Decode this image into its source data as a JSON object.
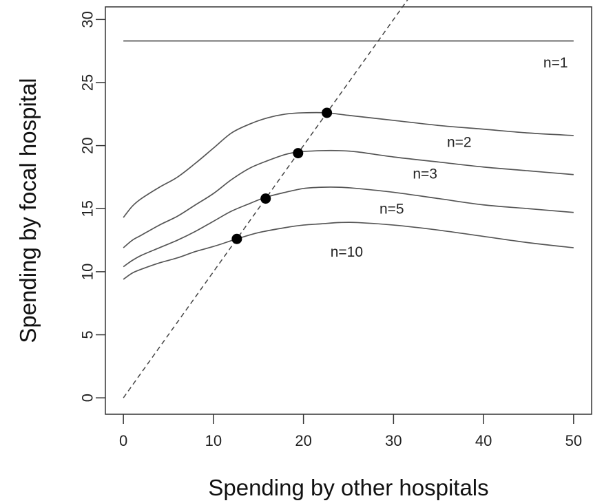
{
  "chart_data": {
    "type": "line",
    "title": "",
    "xlabel": "Spending by other hospitals",
    "ylabel": "Spending by focal hospital",
    "xlim": [
      -2,
      52
    ],
    "ylim": [
      -1.3,
      31
    ],
    "xticks": [
      0,
      10,
      20,
      30,
      40,
      50
    ],
    "yticks": [
      0,
      5,
      10,
      15,
      20,
      25,
      30
    ],
    "grid": false,
    "legend": "none",
    "series": [
      {
        "name": "n=1",
        "label_at": [
          48,
          26.6
        ],
        "x": [
          0,
          50
        ],
        "y": [
          28.3,
          28.3
        ]
      },
      {
        "name": "n=2",
        "label_at": [
          37.3,
          20.3
        ],
        "x": [
          0,
          1,
          2,
          4,
          6,
          8,
          10,
          12,
          14,
          16,
          18,
          20,
          22.5,
          25,
          30,
          35,
          40,
          45,
          50
        ],
        "y": [
          14.3,
          15.2,
          15.8,
          16.7,
          17.5,
          18.6,
          19.8,
          21.0,
          21.7,
          22.2,
          22.5,
          22.6,
          22.6,
          22.4,
          22.0,
          21.6,
          21.3,
          21.0,
          20.8
        ]
      },
      {
        "name": "n=3",
        "label_at": [
          33.5,
          17.8
        ],
        "x": [
          0,
          1,
          2,
          4,
          6,
          8,
          10,
          12,
          14,
          16,
          18,
          19.5,
          22,
          24,
          26,
          30,
          35,
          40,
          45,
          50
        ],
        "y": [
          11.9,
          12.5,
          12.9,
          13.7,
          14.4,
          15.3,
          16.2,
          17.3,
          18.2,
          18.8,
          19.3,
          19.5,
          19.6,
          19.6,
          19.5,
          19.1,
          18.7,
          18.3,
          18.0,
          17.7
        ]
      },
      {
        "name": "n=5",
        "label_at": [
          29.8,
          15.0
        ],
        "x": [
          0,
          1,
          2,
          4,
          6,
          8,
          10,
          12,
          14,
          15.8,
          18,
          20,
          22,
          24,
          26,
          30,
          35,
          40,
          45,
          50
        ],
        "y": [
          10.4,
          10.9,
          11.3,
          11.9,
          12.5,
          13.2,
          14.0,
          14.8,
          15.4,
          15.9,
          16.3,
          16.6,
          16.7,
          16.7,
          16.6,
          16.3,
          15.8,
          15.3,
          15.0,
          14.7
        ]
      },
      {
        "name": "n=10",
        "label_at": [
          24.8,
          11.6
        ],
        "x": [
          0,
          1,
          2,
          4,
          6,
          8,
          10,
          12.6,
          15,
          18,
          20,
          22,
          24,
          26,
          30,
          35,
          40,
          45,
          50
        ],
        "y": [
          9.4,
          9.9,
          10.2,
          10.7,
          11.1,
          11.6,
          12.0,
          12.6,
          13.1,
          13.5,
          13.7,
          13.8,
          13.9,
          13.9,
          13.7,
          13.3,
          12.8,
          12.3,
          11.9
        ]
      }
    ],
    "reference_line": {
      "style": "dashed",
      "x": [
        0,
        31.6
      ],
      "y": [
        0,
        31.6
      ]
    },
    "points": [
      {
        "x": 22.6,
        "y": 22.6
      },
      {
        "x": 19.4,
        "y": 19.4
      },
      {
        "x": 15.8,
        "y": 15.8
      },
      {
        "x": 12.6,
        "y": 12.6
      }
    ]
  }
}
